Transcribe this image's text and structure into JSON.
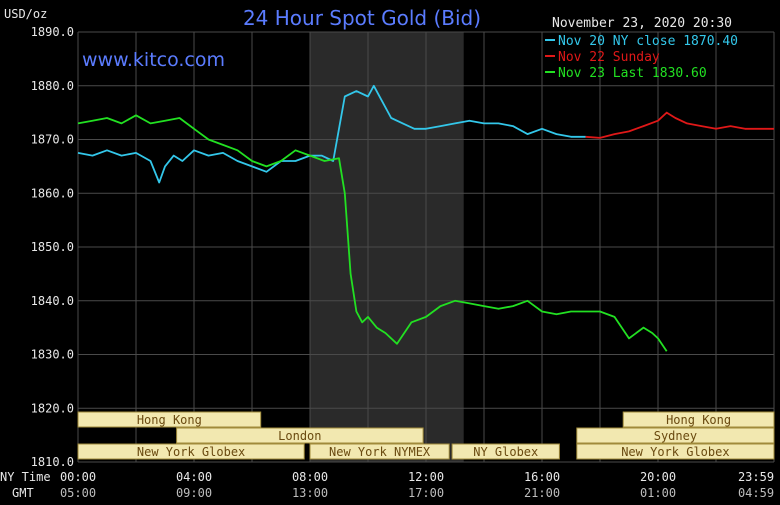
{
  "header": {
    "title": "24 Hour Spot Gold (Bid)",
    "website": "www.kitco.com",
    "date_time": "November 23, 2020 20:30",
    "unit_label": "USD/oz"
  },
  "colors": {
    "background": "#000000",
    "grid": "#4a4a4a",
    "text": "#e8e8e8",
    "title": "#5b7cff",
    "ny_close": "#33c7ea",
    "sunday": "#e01818",
    "last": "#22e022",
    "session_fill": "#f2e8b0",
    "session_border": "#a08a3a",
    "session_text": "#6a4a10",
    "nymex_shade": "#2a2a2a"
  },
  "legend": {
    "items": [
      {
        "label": "Nov 20 NY close 1870.40",
        "color": "#33c7ea"
      },
      {
        "label": "Nov 22 Sunday",
        "color": "#e01818"
      },
      {
        "label": "Nov 23 Last 1830.60",
        "color": "#22e022"
      }
    ]
  },
  "axis_labels": {
    "ny_time": "NY Time",
    "gmt": "GMT"
  },
  "sessions": [
    {
      "label": "Hong Kong",
      "start": 0,
      "end": 6.3,
      "row": 0
    },
    {
      "label": "Hong Kong",
      "start": 18.8,
      "end": 24,
      "row": 0
    },
    {
      "label": "London",
      "start": 3.4,
      "end": 11.9,
      "row": 1
    },
    {
      "label": "Sydney",
      "start": 17.2,
      "end": 24,
      "row": 1
    },
    {
      "label": "New York Globex",
      "start": 0,
      "end": 7.8,
      "row": 2
    },
    {
      "label": "New York NYMEX",
      "start": 8.0,
      "end": 12.8,
      "row": 2
    },
    {
      "label": "NY Globex",
      "start": 12.9,
      "end": 16.6,
      "row": 2
    },
    {
      "label": "New York Globex",
      "start": 17.2,
      "end": 24,
      "row": 2
    }
  ],
  "chart_data": {
    "type": "line",
    "title": "24 Hour Spot Gold (Bid)",
    "ylabel": "USD/oz",
    "ylim": [
      1810,
      1890
    ],
    "xlim": [
      0,
      24
    ],
    "y_ticks": [
      "1890.0",
      "1880.0",
      "1870.0",
      "1860.0",
      "1850.0",
      "1840.0",
      "1830.0",
      "1820.0",
      "1810.0"
    ],
    "y_tick_values": [
      1890,
      1880,
      1870,
      1860,
      1850,
      1840,
      1830,
      1820,
      1810
    ],
    "x_tick_values": [
      0,
      4,
      8,
      12,
      16,
      20,
      23.983
    ],
    "x_ticks_ny": [
      "00:00",
      "04:00",
      "08:00",
      "12:00",
      "16:00",
      "20:00",
      "23:59"
    ],
    "x_ticks_gmt": [
      "05:00",
      "09:00",
      "13:00",
      "17:00",
      "21:00",
      "01:00",
      "04:59"
    ],
    "nymex_shade": [
      8.0,
      13.3
    ],
    "grid": true,
    "legend_position": "top-right",
    "series": [
      {
        "name": "Nov 20 NY close 1870.40",
        "x": [
          0,
          0.5,
          1,
          1.5,
          2,
          2.5,
          2.8,
          3,
          3.3,
          3.6,
          4,
          4.5,
          5,
          5.5,
          6,
          6.5,
          7,
          7.5,
          8,
          8.4,
          8.8,
          9.2,
          9.6,
          10,
          10.2,
          10.5,
          10.8,
          11.2,
          11.6,
          12,
          12.5,
          13,
          13.5,
          14,
          14.5,
          15,
          15.5,
          16,
          16.5,
          17,
          17.5
        ],
        "y": [
          1867.5,
          1867,
          1868,
          1867,
          1867.5,
          1866,
          1862,
          1865,
          1867,
          1866,
          1868,
          1867,
          1867.5,
          1866,
          1865,
          1864,
          1866,
          1866,
          1867,
          1867,
          1866,
          1878,
          1879,
          1878,
          1880,
          1877,
          1874,
          1873,
          1872,
          1872,
          1872.5,
          1873,
          1873.5,
          1873,
          1873,
          1872.5,
          1871,
          1872,
          1871,
          1870.5,
          1870.5
        ]
      },
      {
        "name": "Nov 22 Sunday",
        "x": [
          17.5,
          18,
          18.5,
          19,
          19.5,
          20,
          20.3,
          20.6,
          21,
          21.5,
          22,
          22.5,
          23,
          23.5,
          24
        ],
        "y": [
          1870.5,
          1870.3,
          1871,
          1871.5,
          1872.5,
          1873.5,
          1875,
          1874,
          1873,
          1872.5,
          1872,
          1872.5,
          1872,
          1872,
          1872
        ]
      },
      {
        "name": "Nov 23 Last 1830.60",
        "x": [
          0,
          0.5,
          1,
          1.5,
          2,
          2.5,
          3,
          3.5,
          4,
          4.5,
          5,
          5.5,
          6,
          6.5,
          7,
          7.5,
          8,
          8.5,
          9,
          9.2,
          9.4,
          9.6,
          9.8,
          10,
          10.3,
          10.6,
          11,
          11.5,
          12,
          12.5,
          13,
          13.5,
          14,
          14.5,
          15,
          15.5,
          16,
          16.5,
          17,
          17.5,
          18,
          18.5,
          19,
          19.5,
          19.8,
          20,
          20.3
        ],
        "y": [
          1873,
          1873.5,
          1874,
          1873,
          1874.5,
          1873,
          1873.5,
          1874,
          1872,
          1870,
          1869,
          1868,
          1866,
          1865,
          1866,
          1868,
          1867,
          1866,
          1866.5,
          1860,
          1845,
          1838,
          1836,
          1837,
          1835,
          1834,
          1832,
          1836,
          1837,
          1839,
          1840,
          1839.5,
          1839,
          1838.5,
          1839,
          1840,
          1838,
          1837.5,
          1838,
          1838,
          1838,
          1837,
          1833,
          1835,
          1834,
          1833,
          1830.6
        ]
      }
    ]
  }
}
